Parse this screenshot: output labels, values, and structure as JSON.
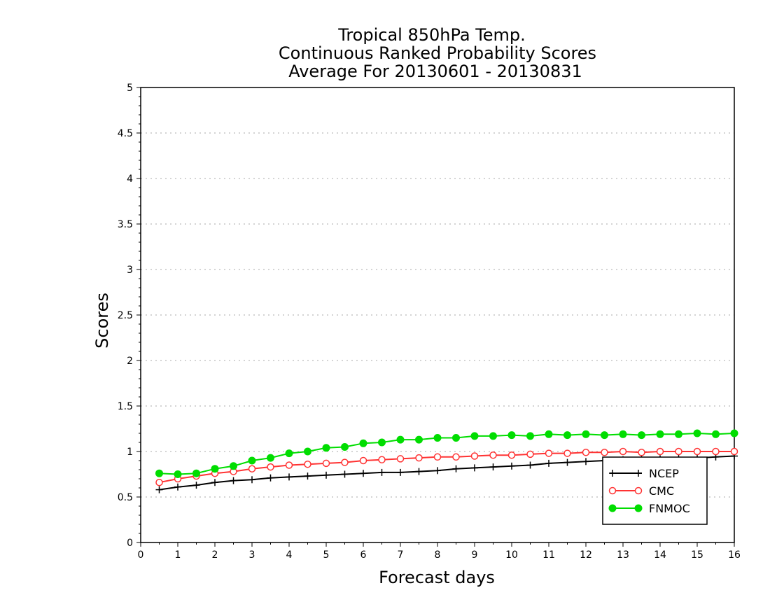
{
  "chart_data": {
    "type": "line",
    "title": [
      "Tropical 850hPa Temp.",
      "Continuous Ranked Probability Scores",
      "Average For 20130601 - 20130831"
    ],
    "xlabel": "Forecast days",
    "ylabel": "Scores",
    "xlim": [
      0,
      16
    ],
    "ylim": [
      0,
      5
    ],
    "x_ticks": [
      "0",
      "1",
      "2",
      "3",
      "4",
      "5",
      "6",
      "7",
      "8",
      "9",
      "10",
      "11",
      "12",
      "13",
      "14",
      "15",
      "16"
    ],
    "y_ticks": [
      "0",
      "0.5",
      "1",
      "1.5",
      "2",
      "2.5",
      "3",
      "3.5",
      "4",
      "4.5",
      "5"
    ],
    "grid": "horizontal dotted",
    "legend_position": "bottom-right",
    "x": [
      0.5,
      1,
      1.5,
      2,
      2.5,
      3,
      3.5,
      4,
      4.5,
      5,
      5.5,
      6,
      6.5,
      7,
      7.5,
      8,
      8.5,
      9,
      9.5,
      10,
      10.5,
      11,
      11.5,
      12,
      12.5,
      13,
      13.5,
      14,
      14.5,
      15,
      15.5,
      16
    ],
    "series": [
      {
        "name": "NCEP",
        "color": "#000000",
        "marker": "plus",
        "values": [
          0.58,
          0.61,
          0.63,
          0.66,
          0.68,
          0.69,
          0.71,
          0.72,
          0.73,
          0.74,
          0.75,
          0.76,
          0.77,
          0.77,
          0.78,
          0.79,
          0.81,
          0.82,
          0.83,
          0.84,
          0.85,
          0.87,
          0.88,
          0.89,
          0.9,
          0.91,
          0.92,
          0.92,
          0.93,
          0.93,
          0.94,
          0.95
        ]
      },
      {
        "name": "CMC",
        "color": "#ff3333",
        "marker": "open-circle",
        "values": [
          0.66,
          0.7,
          0.73,
          0.76,
          0.78,
          0.81,
          0.83,
          0.85,
          0.86,
          0.87,
          0.88,
          0.9,
          0.91,
          0.92,
          0.93,
          0.94,
          0.94,
          0.95,
          0.96,
          0.96,
          0.97,
          0.98,
          0.98,
          0.99,
          0.99,
          1.0,
          0.99,
          1.0,
          1.0,
          1.0,
          1.0,
          1.0
        ]
      },
      {
        "name": "FNMOC",
        "color": "#00dd00",
        "marker": "filled-circle",
        "values": [
          0.76,
          0.75,
          0.76,
          0.81,
          0.84,
          0.9,
          0.93,
          0.98,
          1.0,
          1.04,
          1.05,
          1.09,
          1.1,
          1.13,
          1.13,
          1.15,
          1.15,
          1.17,
          1.17,
          1.18,
          1.17,
          1.19,
          1.18,
          1.19,
          1.18,
          1.19,
          1.18,
          1.19,
          1.19,
          1.2,
          1.19,
          1.2
        ]
      }
    ]
  }
}
